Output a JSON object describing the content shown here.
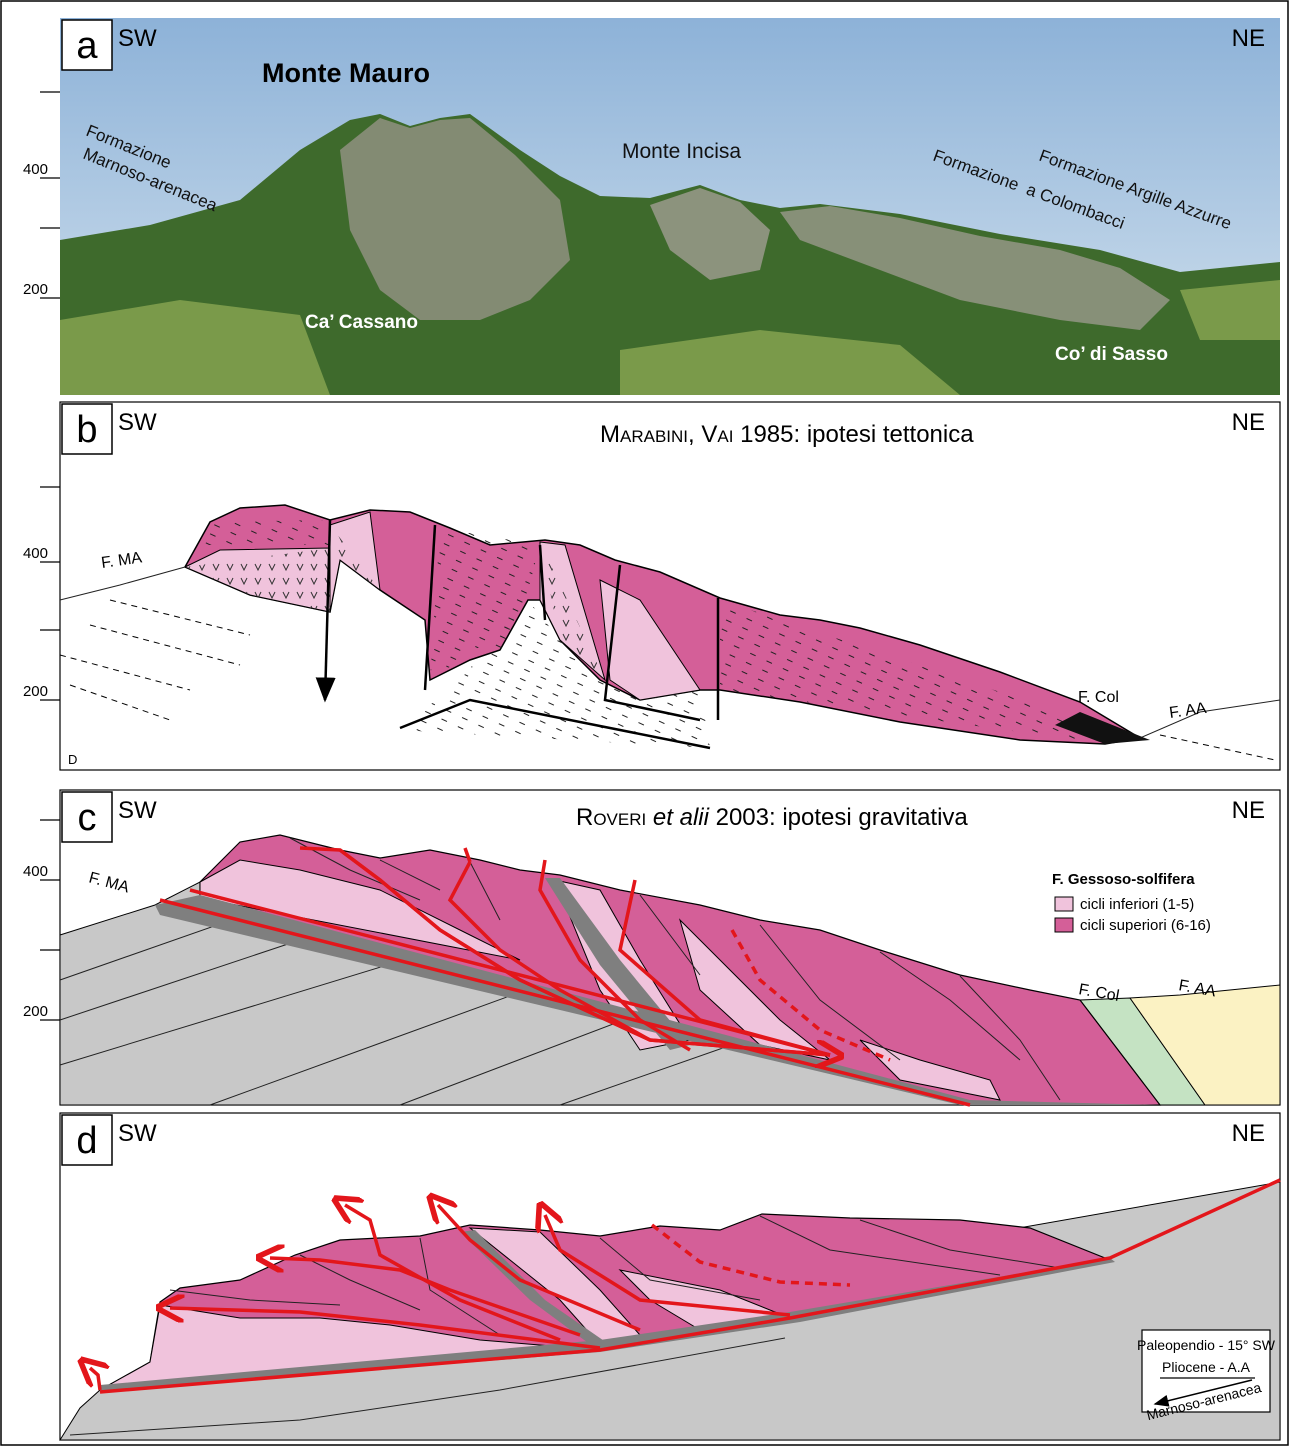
{
  "panels": [
    {
      "letter": "a",
      "left": "SW",
      "right": "NE",
      "scale": [
        "400",
        "200"
      ],
      "labels": [
        "Monte Mauro",
        "Formazione",
        "Marnoso-arenacea",
        "Monte Incisa",
        "Formazione  a Colombacci",
        "Formazione Argille Azzurre",
        "Ca’ Cassano",
        "Co’ di Sasso"
      ]
    },
    {
      "letter": "b",
      "left": "SW",
      "right": "NE",
      "scale": [
        "400",
        "200"
      ],
      "title": [
        "Marabini, Vai",
        " 1985: ipotesi tettonica"
      ],
      "labels": [
        "F. MA",
        "F. Col",
        "F. AA",
        "D"
      ]
    },
    {
      "letter": "c",
      "left": "SW",
      "right": "NE",
      "scale": [
        "400",
        "200"
      ],
      "title": [
        "Roveri ",
        "et alii",
        " 2003: ipotesi gravitativa"
      ],
      "labels": [
        "F. MA",
        "F. Col",
        "F. AA"
      ],
      "legend": {
        "title": "F. Gessoso-solfifera",
        "items": [
          "cicli inferiori (1-5)",
          "cicli superiori (6-16)"
        ]
      }
    },
    {
      "letter": "d",
      "left": "SW",
      "right": "NE",
      "box": [
        "Paleopendio - 15° SW",
        "Pliocene - A.A",
        "Marnoso-arenacea"
      ]
    }
  ]
}
